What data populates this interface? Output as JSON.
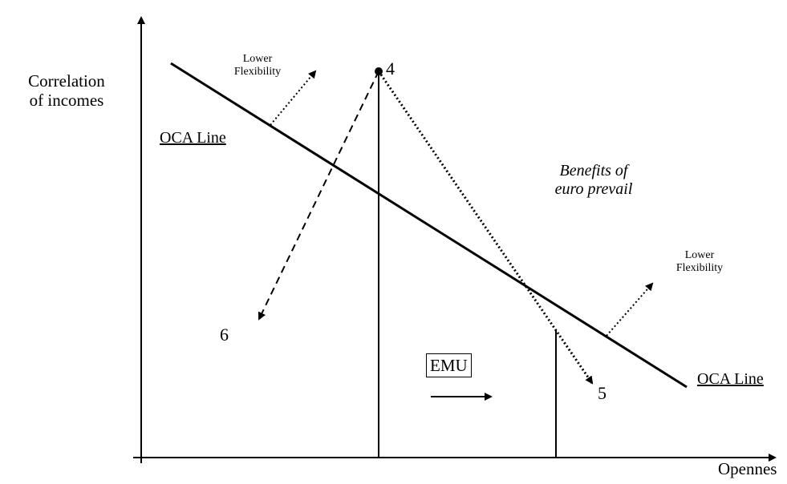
{
  "diagram": {
    "y_axis_label_line1": "Correlation",
    "y_axis_label_line2": "of incomes",
    "x_axis_label": "Opennes",
    "oca_line_left_label": "OCA Line",
    "oca_line_right_label": "OCA Line",
    "lower_flex_top_line1": "Lower",
    "lower_flex_top_line2": "Flexibility",
    "lower_flex_right_line1": "Lower",
    "lower_flex_right_line2": "Flexibility",
    "benefits_line1": "Benefits of",
    "benefits_line2": "euro prevail",
    "point_4": "4",
    "point_5": "5",
    "point_6": "6",
    "emu_label": "EMU"
  }
}
